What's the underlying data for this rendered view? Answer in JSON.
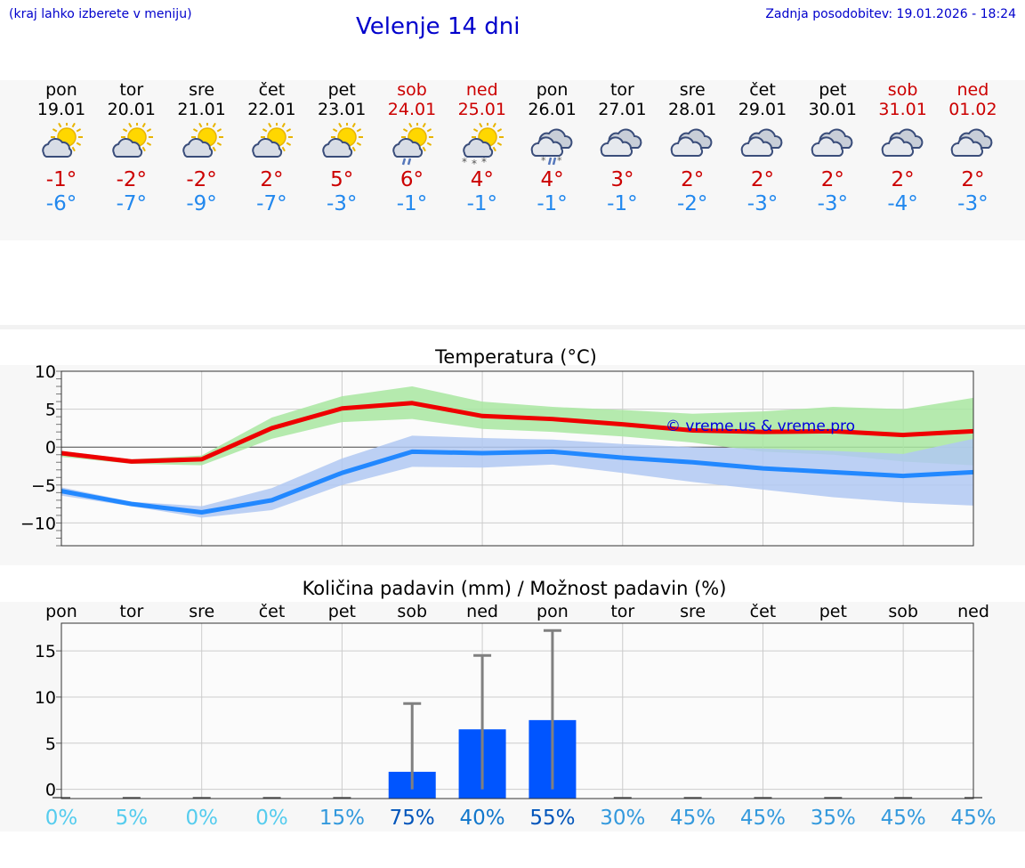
{
  "header": {
    "location_hint": "(kraj lahko izberete v meniju)",
    "title": "Velenje 14 dni",
    "updated_label": "Zadnja posodobitev:",
    "updated_value": "19.01.2026 - 18:24"
  },
  "colors": {
    "weekday": "#000000",
    "weekend": "#cc0000",
    "tmax": "#cc0000",
    "tmin": "#2288ee",
    "max_line": "#ee0000",
    "min_line": "#2288ff",
    "max_band": "#a8e6a0",
    "min_band": "#b0c8f2",
    "bar": "#0055ff",
    "error_bar": "#808080"
  },
  "days": [
    {
      "name": "pon",
      "date": "19.01",
      "weekend": false,
      "icon": "partly-sunny-icon",
      "tmax": "-1°",
      "tmin": "-6°"
    },
    {
      "name": "tor",
      "date": "20.01",
      "weekend": false,
      "icon": "partly-sunny-icon",
      "tmax": "-2°",
      "tmin": "-7°"
    },
    {
      "name": "sre",
      "date": "21.01",
      "weekend": false,
      "icon": "partly-sunny-icon",
      "tmax": "-2°",
      "tmin": "-9°"
    },
    {
      "name": "čet",
      "date": "22.01",
      "weekend": false,
      "icon": "partly-sunny-icon",
      "tmax": "2°",
      "tmin": "-7°"
    },
    {
      "name": "pet",
      "date": "23.01",
      "weekend": false,
      "icon": "partly-sunny-icon",
      "tmax": "5°",
      "tmin": "-3°"
    },
    {
      "name": "sob",
      "date": "24.01",
      "weekend": true,
      "icon": "sun-rain-icon",
      "tmax": "6°",
      "tmin": "-1°"
    },
    {
      "name": "ned",
      "date": "25.01",
      "weekend": true,
      "icon": "sun-snow-icon",
      "tmax": "4°",
      "tmin": "-1°"
    },
    {
      "name": "pon",
      "date": "26.01",
      "weekend": false,
      "icon": "sleet-icon",
      "tmax": "4°",
      "tmin": "-1°"
    },
    {
      "name": "tor",
      "date": "27.01",
      "weekend": false,
      "icon": "cloudy-icon",
      "tmax": "3°",
      "tmin": "-1°"
    },
    {
      "name": "sre",
      "date": "28.01",
      "weekend": false,
      "icon": "cloudy-icon",
      "tmax": "2°",
      "tmin": "-2°"
    },
    {
      "name": "čet",
      "date": "29.01",
      "weekend": false,
      "icon": "cloudy-icon",
      "tmax": "2°",
      "tmin": "-3°"
    },
    {
      "name": "pet",
      "date": "30.01",
      "weekend": false,
      "icon": "cloudy-icon",
      "tmax": "2°",
      "tmin": "-3°"
    },
    {
      "name": "sob",
      "date": "31.01",
      "weekend": true,
      "icon": "cloudy-icon",
      "tmax": "2°",
      "tmin": "-4°"
    },
    {
      "name": "ned",
      "date": "01.02",
      "weekend": true,
      "icon": "cloudy-icon",
      "tmax": "2°",
      "tmin": "-3°"
    }
  ],
  "chart_data": [
    {
      "type": "line",
      "title": "Temperatura (°C)",
      "xlabel": "",
      "ylabel": "°C",
      "ylim": [
        -13,
        10
      ],
      "yticks": [
        10,
        5,
        0,
        -5,
        -10
      ],
      "ytick_labels": [
        "10",
        "5",
        "0",
        "−5",
        "−10"
      ],
      "grid": true,
      "watermark": "© vreme.us & vreme.pro",
      "x": [
        0,
        1,
        2,
        3,
        4,
        5,
        6,
        7,
        8,
        9,
        10,
        11,
        12,
        13
      ],
      "series": [
        {
          "name": "max",
          "values": [
            -0.8,
            -1.9,
            -1.6,
            2.5,
            5.1,
            5.8,
            4.1,
            3.7,
            3.0,
            2.2,
            2.0,
            2.1,
            1.6,
            2.1
          ]
        },
        {
          "name": "min",
          "values": [
            -5.8,
            -7.5,
            -8.6,
            -7.0,
            -3.4,
            -0.6,
            -0.8,
            -0.6,
            -1.4,
            -2.0,
            -2.8,
            -3.3,
            -3.8,
            -3.3
          ]
        },
        {
          "name": "max_range_upper",
          "values": [
            -0.5,
            -1.6,
            -1.1,
            3.9,
            6.7,
            8.0,
            6.0,
            5.3,
            4.9,
            4.4,
            4.7,
            5.3,
            5.0,
            6.5
          ]
        },
        {
          "name": "max_range_lower",
          "values": [
            -1.3,
            -2.2,
            -2.4,
            1.1,
            3.3,
            3.7,
            2.4,
            2.0,
            1.4,
            0.6,
            -0.6,
            -1.0,
            -1.9,
            -2.4
          ]
        },
        {
          "name": "min_range_upper",
          "values": [
            -5.3,
            -7.2,
            -7.8,
            -5.4,
            -1.5,
            1.5,
            1.2,
            1.0,
            0.4,
            0.0,
            -0.2,
            -0.5,
            -0.9,
            1.1
          ]
        },
        {
          "name": "min_range_lower",
          "values": [
            -6.4,
            -7.8,
            -9.3,
            -8.3,
            -5.0,
            -2.6,
            -2.7,
            -2.3,
            -3.4,
            -4.6,
            -5.6,
            -6.6,
            -7.3,
            -7.7
          ]
        }
      ]
    },
    {
      "type": "bar",
      "title": "Količina padavin (mm) / Možnost padavin (%)",
      "xlabel": "",
      "ylabel": "mm",
      "ylim": [
        -1,
        18
      ],
      "yticks": [
        15,
        10,
        5,
        0
      ],
      "grid": true,
      "categories": [
        "pon",
        "tor",
        "sre",
        "čet",
        "pet",
        "sob",
        "ned",
        "pon",
        "tor",
        "sre",
        "čet",
        "pet",
        "sob",
        "ned"
      ],
      "values": [
        0,
        0,
        0,
        0,
        0,
        1.9,
        6.5,
        7.5,
        0,
        0,
        0,
        0,
        0,
        0
      ],
      "error_max": [
        0,
        0,
        0,
        0,
        0,
        9.3,
        14.5,
        17.2,
        0,
        0,
        0,
        0,
        0,
        0
      ],
      "probability_labels": [
        "0%",
        "5%",
        "0%",
        "0%",
        "15%",
        "75%",
        "40%",
        "55%",
        "30%",
        "45%",
        "45%",
        "35%",
        "45%",
        "45%"
      ],
      "probability_colors": [
        "#55ccee",
        "#55ccee",
        "#55ccee",
        "#55ccee",
        "#3399dd",
        "#0055bb",
        "#1177cc",
        "#0055bb",
        "#3399dd",
        "#3399dd",
        "#3399dd",
        "#3399dd",
        "#3399dd",
        "#3399dd"
      ]
    }
  ]
}
